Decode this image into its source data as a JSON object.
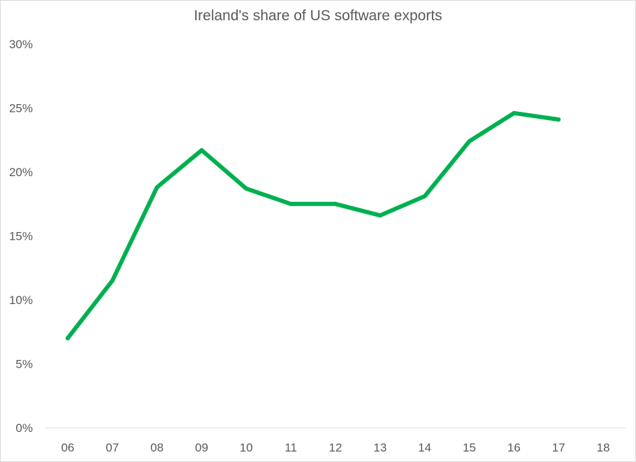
{
  "chart_data": {
    "type": "line",
    "title": "Ireland's share of US software exports",
    "categories": [
      "06",
      "07",
      "08",
      "09",
      "10",
      "11",
      "12",
      "13",
      "14",
      "15",
      "16",
      "17",
      "18"
    ],
    "y_ticks": [
      "0%",
      "5%",
      "10%",
      "15%",
      "20%",
      "25%",
      "30%"
    ],
    "ylim": [
      0,
      30
    ],
    "series": [
      {
        "values": [
          7.0,
          11.5,
          18.8,
          21.7,
          18.7,
          17.5,
          17.5,
          16.6,
          18.1,
          22.4,
          24.6,
          24.1,
          null
        ]
      }
    ],
    "line_color": "#00b050",
    "grid": false,
    "legend": "none"
  }
}
